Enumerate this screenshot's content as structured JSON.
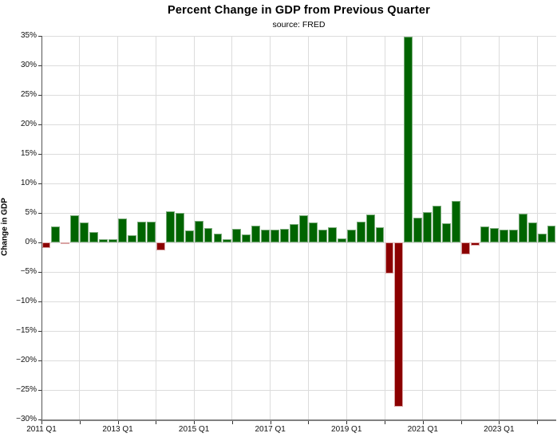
{
  "header": {
    "title": "Percent Change in GDP from Previous Quarter",
    "subtitle": "source: FRED"
  },
  "chart_data": {
    "type": "bar",
    "title": "Percent Change in GDP from Previous Quarter",
    "subtitle": "source: FRED",
    "xlabel": "",
    "ylabel": "Change in GDP",
    "ylim": [
      -30,
      35
    ],
    "y_tick_step": 5,
    "y_tick_suffix": "%",
    "y_tick_labels": [
      "35%",
      "30%",
      "25%",
      "20%",
      "15%",
      "10%",
      "5%",
      "0%",
      "−5%",
      "−10%",
      "−15%",
      "−20%",
      "−25%",
      "−30%"
    ],
    "x_tick_years": [
      2011,
      2012,
      2013,
      2014,
      2015,
      2016,
      2017,
      2018,
      2019,
      2020,
      2021,
      2022,
      2023,
      2024
    ],
    "x_tick_labels_visible": [
      "2011 Q1",
      "2013 Q1",
      "2015 Q1",
      "2017 Q1",
      "2019 Q1",
      "2021 Q1",
      "2023 Q1"
    ],
    "grid": true,
    "legend": "none",
    "categories": [
      "2011 Q1",
      "2011 Q2",
      "2011 Q3",
      "2011 Q4",
      "2012 Q1",
      "2012 Q2",
      "2012 Q3",
      "2012 Q4",
      "2013 Q1",
      "2013 Q2",
      "2013 Q3",
      "2013 Q4",
      "2014 Q1",
      "2014 Q2",
      "2014 Q3",
      "2014 Q4",
      "2015 Q1",
      "2015 Q2",
      "2015 Q3",
      "2015 Q4",
      "2016 Q1",
      "2016 Q2",
      "2016 Q3",
      "2016 Q4",
      "2017 Q1",
      "2017 Q2",
      "2017 Q3",
      "2017 Q4",
      "2018 Q1",
      "2018 Q2",
      "2018 Q3",
      "2018 Q4",
      "2019 Q1",
      "2019 Q2",
      "2019 Q3",
      "2019 Q4",
      "2020 Q1",
      "2020 Q2",
      "2020 Q3",
      "2020 Q4",
      "2021 Q1",
      "2021 Q2",
      "2021 Q3",
      "2021 Q4",
      "2022 Q1",
      "2022 Q2",
      "2022 Q3",
      "2022 Q4",
      "2023 Q1",
      "2023 Q2",
      "2023 Q3",
      "2023 Q4",
      "2024 Q1",
      "2024 Q2"
    ],
    "values": [
      -1.0,
      2.7,
      -0.1,
      4.6,
      3.4,
      1.8,
      0.6,
      0.5,
      4.0,
      1.2,
      3.5,
      3.5,
      -1.4,
      5.3,
      5.0,
      2.0,
      3.6,
      2.5,
      1.5,
      0.6,
      2.3,
      1.4,
      2.9,
      2.1,
      2.1,
      2.3,
      3.1,
      4.6,
      3.4,
      2.1,
      2.6,
      0.7,
      2.2,
      3.5,
      4.7,
      2.6,
      -5.3,
      -27.8,
      34.8,
      4.2,
      5.2,
      6.2,
      3.3,
      7.0,
      -2.0,
      -0.6,
      2.7,
      2.5,
      2.2,
      2.1,
      4.9,
      3.4,
      1.5,
      2.8
    ],
    "colors": {
      "positive_fill": "#006400",
      "positive_edge": "#7aab7a",
      "negative_fill": "#8b0000",
      "negative_edge": "#d9a3a3",
      "gridline": "#dcdcdc",
      "axis": "#808080",
      "text": "#000000"
    }
  }
}
